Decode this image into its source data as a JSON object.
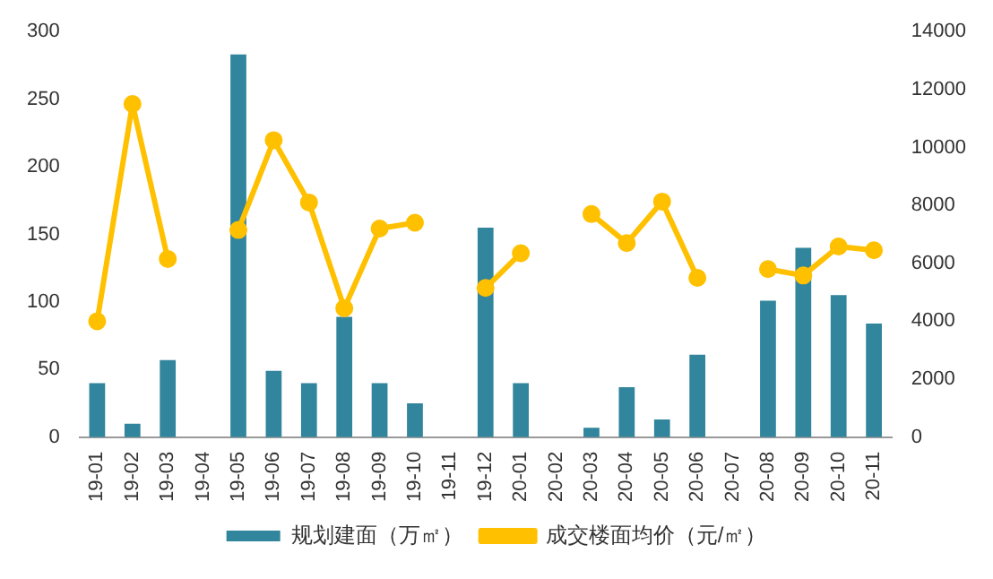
{
  "chart_data": {
    "type": "bar",
    "categories": [
      "19-01",
      "19-02",
      "19-03",
      "19-04",
      "19-05",
      "19-06",
      "19-07",
      "19-08",
      "19-09",
      "19-10",
      "19-11",
      "19-12",
      "20-01",
      "20-02",
      "20-03",
      "20-04",
      "20-05",
      "20-06",
      "20-07",
      "20-08",
      "20-09",
      "20-10",
      "20-11"
    ],
    "series": [
      {
        "name": "规划建面（万㎡）",
        "color": "#31859c",
        "values": [
          40,
          10,
          57,
          null,
          283,
          49,
          40,
          89,
          40,
          25,
          null,
          155,
          40,
          null,
          7,
          37,
          13,
          61,
          null,
          101,
          140,
          105,
          84
        ]
      },
      {
        "name": "成交楼面均价（元/㎡）",
        "type": "line",
        "axis": "y2",
        "color": "#ffc000",
        "values": [
          4000,
          11500,
          6150,
          null,
          7150,
          10250,
          8100,
          4450,
          7200,
          7400,
          null,
          5150,
          6350,
          null,
          7700,
          6700,
          8130,
          5500,
          null,
          5800,
          5580,
          6580,
          6450
        ]
      }
    ],
    "ylim": [
      0,
      300
    ],
    "yticks": [
      0,
      50,
      100,
      150,
      200,
      250,
      300
    ],
    "y2lim": [
      0,
      14000
    ],
    "y2ticks": [
      0,
      2000,
      4000,
      6000,
      8000,
      10000,
      12000,
      14000
    ],
    "grid": false,
    "legend": "bottom",
    "marker": "circle"
  }
}
